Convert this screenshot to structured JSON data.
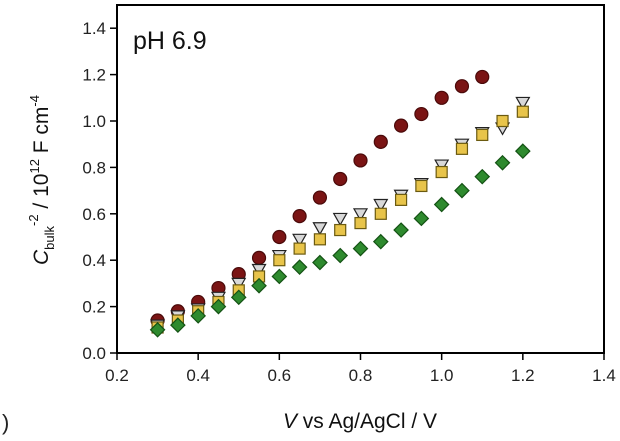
{
  "edge_mark": ")",
  "chart_data": {
    "type": "scatter",
    "annotation": "pH 6.9",
    "xlabel_italic": "V",
    "xlabel_rest": " vs Ag/AgCl / V",
    "ylabel_main": "C",
    "ylabel_sub": "bulk",
    "ylabel_sup1": "-2",
    "ylabel_mid": " / 10",
    "ylabel_sup2": "12",
    "ylabel_unit": " F cm",
    "ylabel_sup3": "-4",
    "xlim": [
      0.2,
      1.4
    ],
    "ylim": [
      0.0,
      1.5
    ],
    "x_ticks": [
      "0.2",
      "0.4",
      "0.6",
      "0.8",
      "1.0",
      "1.2",
      "1.4"
    ],
    "y_ticks": [
      "0.0",
      "0.2",
      "0.4",
      "0.6",
      "0.8",
      "1.0",
      "1.2",
      "1.4"
    ],
    "x_tick_values": [
      0.2,
      0.4,
      0.6,
      0.8,
      1.0,
      1.2,
      1.4
    ],
    "y_tick_values": [
      0.0,
      0.2,
      0.4,
      0.6,
      0.8,
      1.0,
      1.2,
      1.4
    ],
    "grid": false,
    "series": [
      {
        "marker": "circle",
        "color": "#7a1414",
        "edge": "#4a0a0a",
        "x": [
          0.3,
          0.35,
          0.4,
          0.45,
          0.5,
          0.55,
          0.6,
          0.65,
          0.7,
          0.75,
          0.8,
          0.85,
          0.9,
          0.95,
          1.0,
          1.05,
          1.1
        ],
        "y": [
          0.14,
          0.18,
          0.22,
          0.28,
          0.34,
          0.41,
          0.5,
          0.59,
          0.67,
          0.75,
          0.83,
          0.91,
          0.98,
          1.03,
          1.1,
          1.15,
          1.19
        ]
      },
      {
        "marker": "triangle-down",
        "color": "#d8d8d8",
        "edge": "#222222",
        "x": [
          0.3,
          0.35,
          0.4,
          0.45,
          0.5,
          0.55,
          0.6,
          0.65,
          0.7,
          0.75,
          0.8,
          0.85,
          0.9,
          0.95,
          1.0,
          1.05,
          1.1,
          1.15,
          1.2
        ],
        "y": [
          0.12,
          0.16,
          0.19,
          0.24,
          0.3,
          0.36,
          0.42,
          0.49,
          0.54,
          0.58,
          0.6,
          0.64,
          0.68,
          0.73,
          0.81,
          0.9,
          0.95,
          0.97,
          1.08
        ]
      },
      {
        "marker": "square",
        "color": "#e8c44a",
        "edge": "#6b5a10",
        "x": [
          0.3,
          0.35,
          0.4,
          0.45,
          0.5,
          0.55,
          0.6,
          0.65,
          0.7,
          0.75,
          0.8,
          0.85,
          0.9,
          0.95,
          1.0,
          1.05,
          1.1,
          1.15,
          1.2
        ],
        "y": [
          0.11,
          0.14,
          0.18,
          0.22,
          0.27,
          0.33,
          0.4,
          0.45,
          0.49,
          0.53,
          0.56,
          0.6,
          0.66,
          0.72,
          0.78,
          0.88,
          0.94,
          1.0,
          1.04
        ]
      },
      {
        "marker": "diamond",
        "color": "#2e8a2e",
        "edge": "#145214",
        "x": [
          0.3,
          0.35,
          0.4,
          0.45,
          0.5,
          0.55,
          0.6,
          0.65,
          0.7,
          0.75,
          0.8,
          0.85,
          0.9,
          0.95,
          1.0,
          1.05,
          1.1,
          1.15,
          1.2
        ],
        "y": [
          0.1,
          0.12,
          0.16,
          0.2,
          0.24,
          0.29,
          0.33,
          0.37,
          0.39,
          0.42,
          0.45,
          0.48,
          0.53,
          0.58,
          0.64,
          0.7,
          0.76,
          0.82,
          0.87
        ]
      }
    ]
  }
}
